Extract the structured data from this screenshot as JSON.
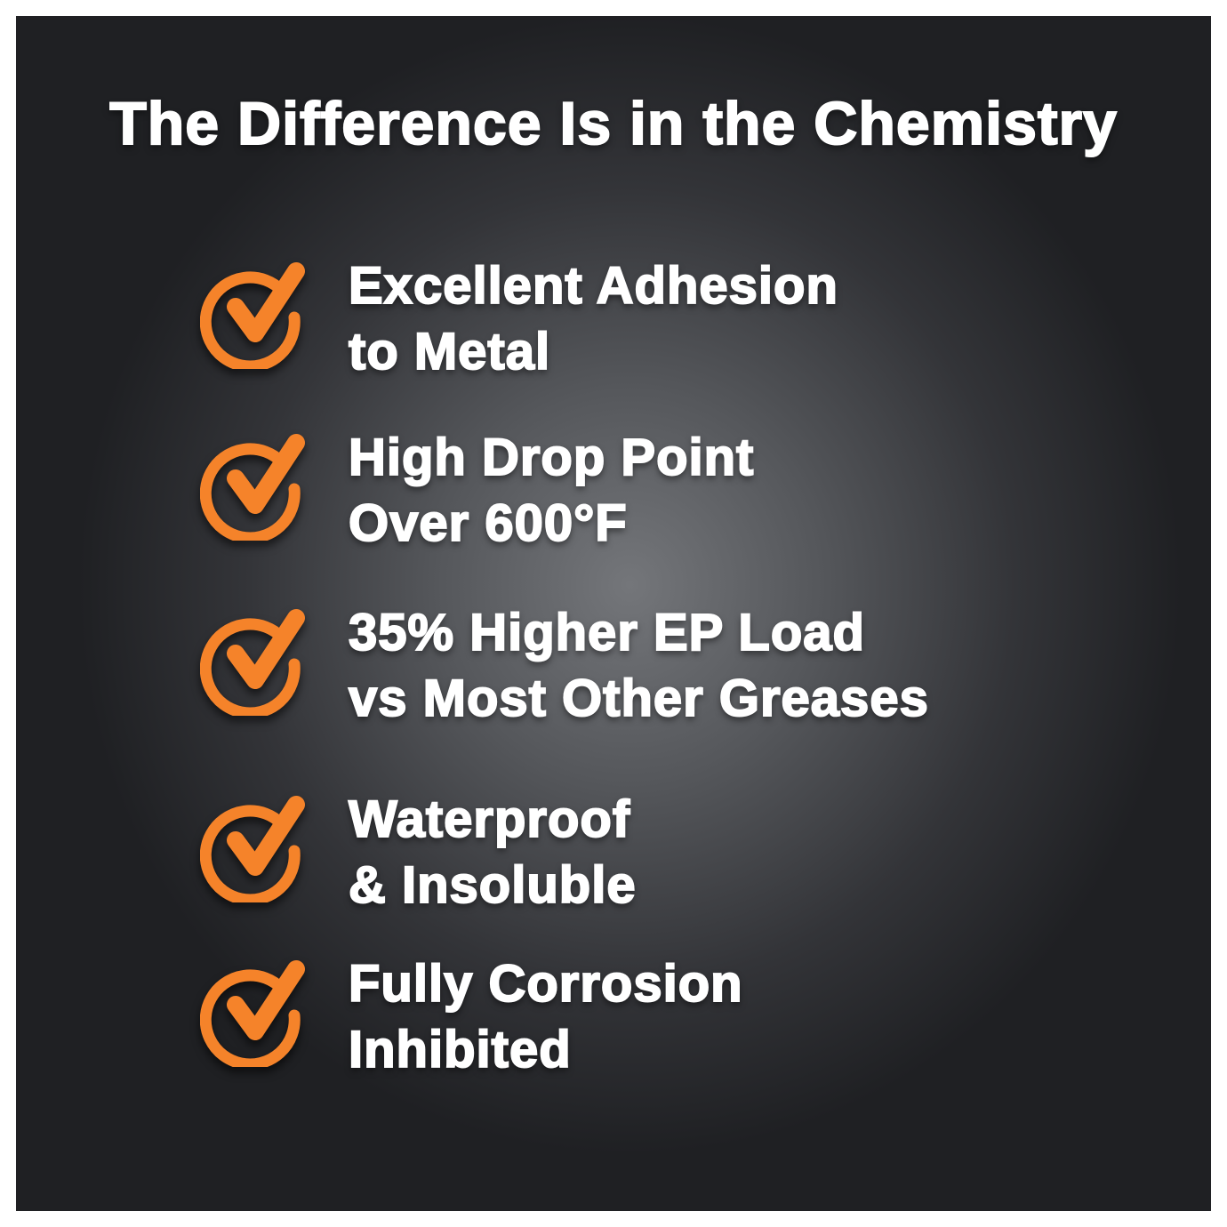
{
  "title": "The Difference Is in the Chemistry",
  "accent_color": "#f5832a",
  "icon": "check-circle-icon",
  "features": [
    {
      "line1": "Excellent Adhesion",
      "line2": "to Metal"
    },
    {
      "line1": "High Drop Point",
      "line2": "Over 600°F"
    },
    {
      "line1": "35% Higher EP Load",
      "line2": "vs Most Other Greases"
    },
    {
      "line1": "Waterproof",
      "line2": "& Insoluble"
    },
    {
      "line1": "Fully Corrosion",
      "line2": "Inhibited"
    }
  ]
}
